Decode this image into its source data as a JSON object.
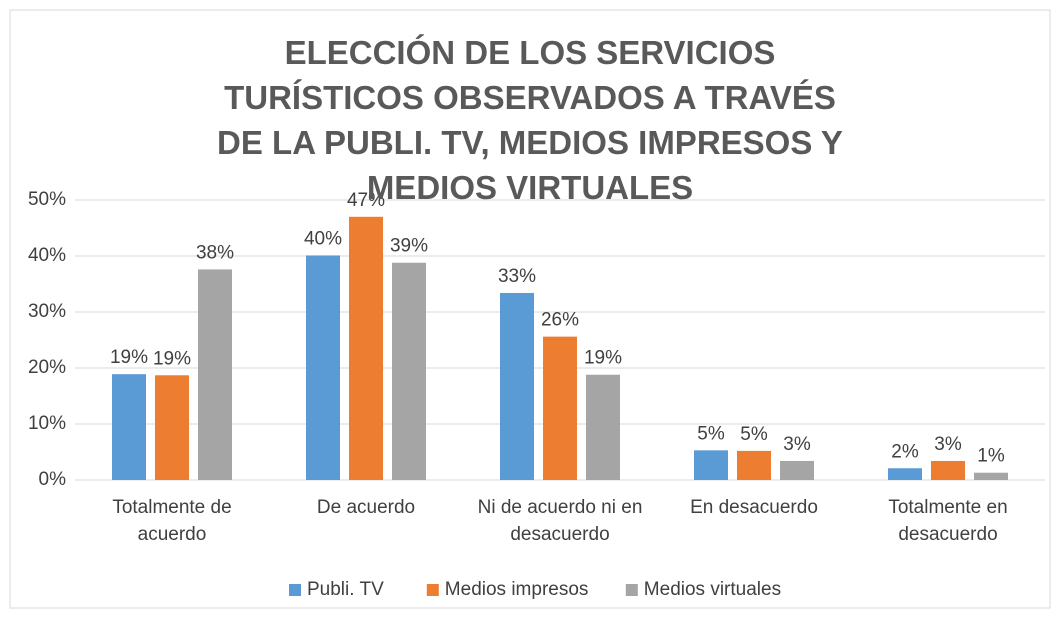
{
  "chart_data": {
    "type": "bar",
    "title": "ELECCIÓN DE LOS SERVICIOS TURÍSTICOS OBSERVADOS A TRAVÉS DE LA PUBLI. TV, MEDIOS IMPRESOS Y MEDIOS VIRTUALES",
    "categories": [
      "Totalmente de acuerdo",
      "De acuerdo",
      "Ni de acuerdo ni en desacuerdo",
      "En desacuerdo",
      "Totalmente en desacuerdo"
    ],
    "series": [
      {
        "name": "Publi. TV",
        "color": "#5b9bd5",
        "values": [
          18.9,
          40.1,
          33.4,
          5.3,
          2.1
        ],
        "value_labels": [
          "19%",
          "40%",
          "33%",
          "5%",
          "2%"
        ]
      },
      {
        "name": "Medios impresos",
        "color": "#ed7d31",
        "values": [
          18.7,
          47.0,
          25.6,
          5.2,
          3.4
        ],
        "value_labels": [
          "19%",
          "47%",
          "26%",
          "5%",
          "3%"
        ]
      },
      {
        "name": "Medios virtuales",
        "color": "#a5a5a5",
        "values": [
          37.6,
          38.8,
          18.8,
          3.4,
          1.3
        ],
        "value_labels": [
          "38%",
          "39%",
          "19%",
          "3%",
          "1%"
        ]
      }
    ],
    "ylim": [
      0,
      50
    ],
    "yticks": [
      {
        "value": 0,
        "label": "0%"
      },
      {
        "value": 10,
        "label": "10%"
      },
      {
        "value": 20,
        "label": "20%"
      },
      {
        "value": 30,
        "label": "30%"
      },
      {
        "value": 40,
        "label": "40%"
      },
      {
        "value": 50,
        "label": "50%"
      }
    ],
    "grid": true,
    "legend": "bottom"
  }
}
